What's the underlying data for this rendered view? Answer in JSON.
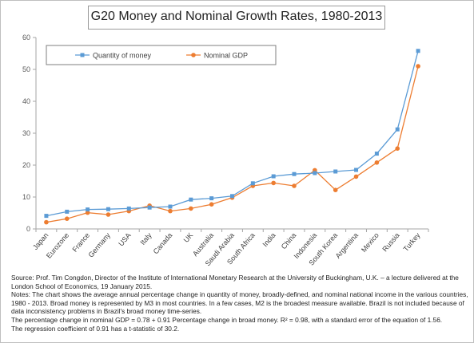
{
  "chart_data": {
    "type": "line",
    "title": "G20 Money and Nominal Growth Rates, 1980-2013",
    "categories": [
      "Japan",
      "Eurozone",
      "France",
      "Germany",
      "USA",
      "Italy",
      "Canada",
      "UK",
      "Australia",
      "Saudi Arabia",
      "South Africa",
      "India",
      "China",
      "Indonesia",
      "South Korea",
      "Argentina",
      "Mexico",
      "Russia",
      "Turkey"
    ],
    "series": [
      {
        "name": "Quantity of money",
        "color": "#5b9bd5",
        "marker": "square",
        "values": [
          4.1,
          5.4,
          6.1,
          6.2,
          6.4,
          6.7,
          7.0,
          9.2,
          9.6,
          10.3,
          14.3,
          16.5,
          17.2,
          17.5,
          18.0,
          18.5,
          23.6,
          31.2,
          55.8
        ]
      },
      {
        "name": "Nominal GDP",
        "color": "#ed7d31",
        "marker": "circle",
        "values": [
          2.1,
          3.2,
          5.1,
          4.5,
          5.6,
          7.3,
          5.6,
          6.4,
          7.7,
          9.8,
          13.5,
          14.4,
          13.5,
          18.4,
          12.2,
          16.4,
          20.8,
          25.2,
          51.0
        ]
      }
    ],
    "ylim": [
      0,
      60
    ],
    "yticks": [
      "0",
      "10",
      "20",
      "30",
      "40",
      "50",
      "60"
    ],
    "xlabel": "",
    "ylabel": "",
    "grid": false,
    "legend": "top-left"
  },
  "notes": {
    "source": "Source: Prof. Tim Congdon, Director of the Institute of International Monetary Research at the University of Buckingham, U.K. – a lecture delivered at the London School of Economics, 19 January 2015.",
    "chart_notes": "Notes: The chart shows the average annual percentage change in quantity of money, broadly-defined, and nominal national income in the various countries, 1980 - 2013. Broad money is represented by M3 in most countries. In a few cases, M2 is the broadest measure available. Brazil is not included because of data inconsistency problems in Brazil's broad money time-series.",
    "equation": "The percentage change in nominal GDP = 0.78 + 0.91 Percentage change in broad money. R² = 0.98, with a standard error of the equation of 1.56.",
    "coefficient": "The regression coefficient of 0.91 has a t-statistic of 30.2."
  }
}
